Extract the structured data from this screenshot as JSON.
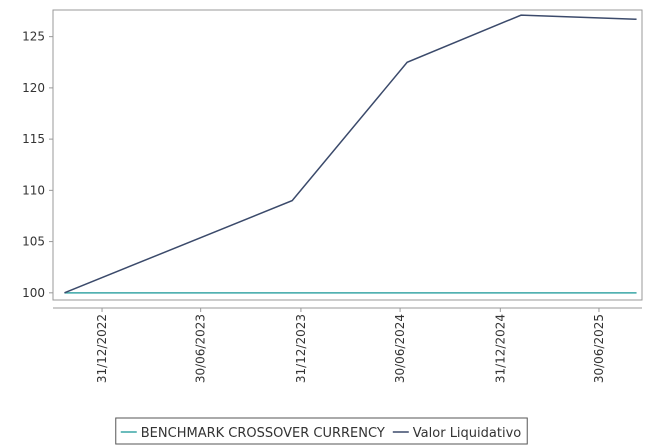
{
  "chart_data": {
    "type": "line",
    "x": [
      "2022-10-23",
      "2023-12-15",
      "2024-07-13",
      "2025-02-07",
      "2025-09-07"
    ],
    "series": [
      {
        "name": "BENCHMARK CROSSOVER CURRENCY",
        "color": "#3aa6a6",
        "values": [
          100,
          100,
          100,
          100,
          100
        ]
      },
      {
        "name": "Valor Liquidativo",
        "color": "#3b4a6b",
        "values": [
          100,
          109,
          122.5,
          127.1,
          126.7
        ]
      }
    ],
    "xlim": [
      "2022-10-02",
      "2025-09-17"
    ],
    "xticks": [
      {
        "value": "2022-12-31",
        "label": "31/12/2022"
      },
      {
        "value": "2023-06-30",
        "label": "30/06/2023"
      },
      {
        "value": "2023-12-31",
        "label": "31/12/2023"
      },
      {
        "value": "2024-06-30",
        "label": "30/06/2024"
      },
      {
        "value": "2024-12-31",
        "label": "31/12/2024"
      },
      {
        "value": "2025-06-30",
        "label": "30/06/2025"
      }
    ],
    "ylim": [
      99.3,
      127.6
    ],
    "yticks": [
      100,
      105,
      110,
      115,
      120,
      125
    ],
    "legend": "bottom"
  }
}
